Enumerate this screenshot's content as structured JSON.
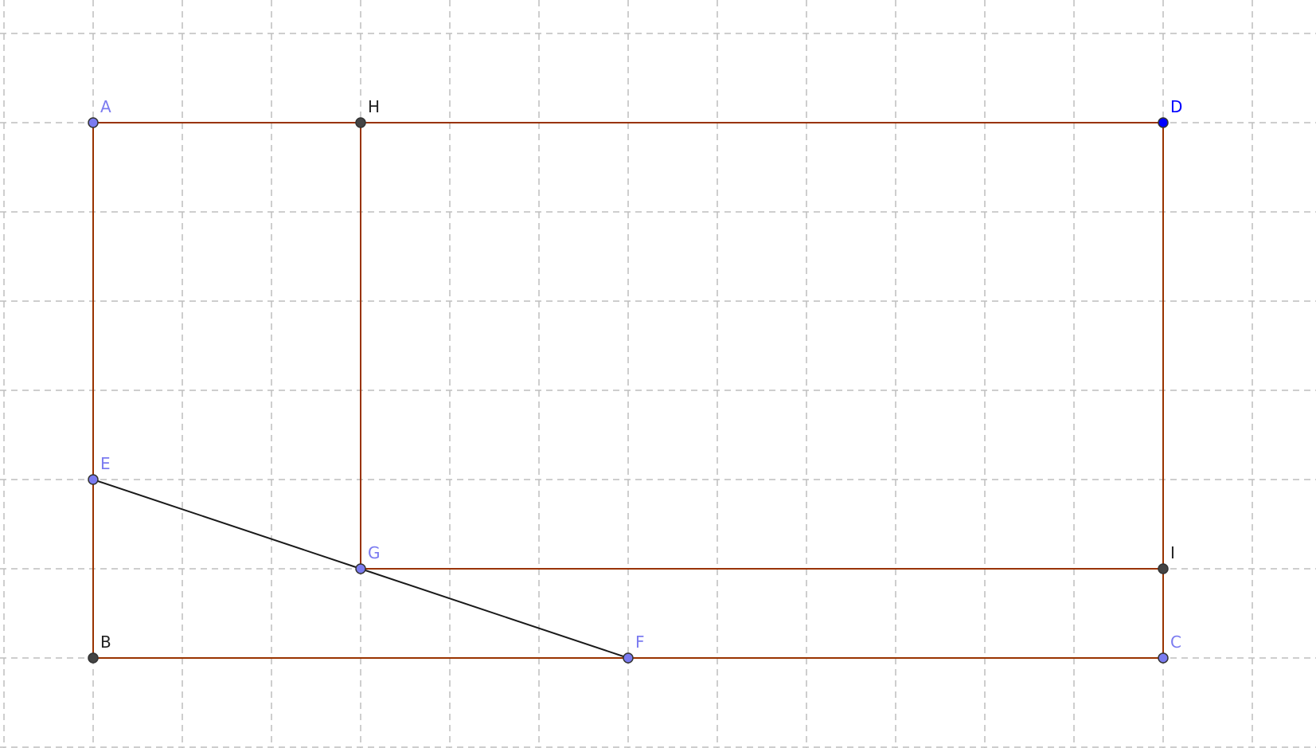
{
  "diagram": {
    "colors": {
      "grid": "#bdbdbd",
      "edge": "#993300",
      "outer_fill": "#f5e7e3",
      "inner_fill": "#ead6ce",
      "segment": "#1a1a1a",
      "free_point": "#7b7bf0",
      "free_label": "#7b7bf0",
      "dependent_point": "#444444",
      "dependent_label": "#222222",
      "selected_point": "#0000ff",
      "selected_label": "#0000ff"
    },
    "grid": {
      "x_range": [
        -1,
        13
      ],
      "y_range": [
        -1,
        7
      ]
    },
    "points": [
      {
        "name": "A",
        "label": "A",
        "x": 0,
        "y": 6,
        "kind": "free"
      },
      {
        "name": "H",
        "label": "H",
        "x": 3,
        "y": 6,
        "kind": "dependent"
      },
      {
        "name": "D",
        "label": "D",
        "x": 12,
        "y": 6,
        "kind": "selected"
      },
      {
        "name": "E",
        "label": "E",
        "x": 0,
        "y": 2,
        "kind": "free"
      },
      {
        "name": "G",
        "label": "G",
        "x": 3,
        "y": 1,
        "kind": "free"
      },
      {
        "name": "I",
        "label": "I",
        "x": 12,
        "y": 1,
        "kind": "dependent"
      },
      {
        "name": "B",
        "label": "B",
        "x": 0,
        "y": 0,
        "kind": "dependent"
      },
      {
        "name": "F",
        "label": "F",
        "x": 6,
        "y": 0,
        "kind": "free"
      },
      {
        "name": "C",
        "label": "C",
        "x": 12,
        "y": 0,
        "kind": "free"
      }
    ],
    "polygons": [
      {
        "name": "rectangle-ABCD",
        "vertices": [
          "A",
          "B",
          "C",
          "D"
        ],
        "fill": "outer"
      },
      {
        "name": "rectangle-HGID",
        "vertices": [
          "H",
          "G",
          "I",
          "D"
        ],
        "fill": "inner"
      }
    ],
    "segments": [
      {
        "name": "segment-EG",
        "from": "E",
        "to": "G"
      },
      {
        "name": "segment-GF",
        "from": "G",
        "to": "F"
      }
    ]
  }
}
